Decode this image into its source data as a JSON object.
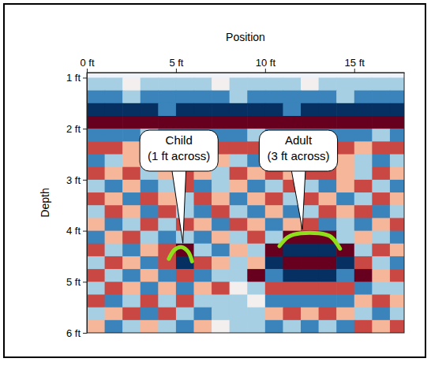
{
  "chart_data": {
    "type": "heatmap",
    "x_label": "Position",
    "y_label": "Depth",
    "xlim": [
      0,
      17.8
    ],
    "ylim": [
      0.9,
      6
    ],
    "xticks": [
      {
        "value": 0,
        "label": "0 ft"
      },
      {
        "value": 5,
        "label": "5 ft"
      },
      {
        "value": 10,
        "label": "10 ft"
      },
      {
        "value": 15,
        "label": "15 ft"
      }
    ],
    "yticks": [
      {
        "value": 1,
        "label": "1 ft"
      },
      {
        "value": 2,
        "label": "2 ft"
      },
      {
        "value": 3,
        "label": "3 ft"
      },
      {
        "value": 4,
        "label": "4 ft"
      },
      {
        "value": 5,
        "label": "5 ft"
      },
      {
        "value": 6,
        "label": "6 ft"
      }
    ],
    "x_edges": [
      0,
      1,
      2,
      3,
      4,
      5,
      6,
      7,
      8,
      9,
      10,
      11,
      12,
      13,
      14,
      15,
      16,
      17,
      18
    ],
    "y_edges": [
      1,
      1.25,
      1.5,
      1.75,
      2,
      2.25,
      2.5,
      2.75,
      3,
      3.25,
      3.5,
      3.75,
      4,
      4.25,
      4.5,
      4.75,
      5,
      5.25,
      5.5,
      5.75,
      6
    ],
    "cells": [
      [
        -1,
        -1,
        0,
        -1,
        -1,
        -1,
        -1,
        0,
        -1,
        -1,
        -1,
        -1,
        0,
        -1,
        -1,
        -1,
        -1,
        -1
      ],
      [
        -2,
        -2,
        -1,
        -2,
        -2,
        -2,
        -2,
        -2,
        -1,
        -2,
        -2,
        -2,
        -2,
        -2,
        -1,
        -2,
        -2,
        -2
      ],
      [
        -3,
        -3,
        -3,
        -3,
        -2,
        -3,
        -3,
        -3,
        -3,
        -3,
        -3,
        -2,
        -3,
        -3,
        -3,
        -3,
        -3,
        -3
      ],
      [
        3,
        3,
        3,
        3,
        3,
        3,
        3,
        3,
        3,
        3,
        3,
        3,
        3,
        3,
        3,
        3,
        3,
        3
      ],
      [
        -2,
        -2,
        -2,
        -1,
        -2,
        -2,
        -2,
        -2,
        -2,
        -1,
        -2,
        -2,
        -2,
        -2,
        -2,
        -2,
        -1,
        -2
      ],
      [
        2,
        2,
        1,
        2,
        2,
        2,
        1,
        2,
        2,
        2,
        2,
        1,
        2,
        2,
        2,
        1,
        2,
        2
      ],
      [
        -2,
        -1,
        1,
        -1,
        -2,
        -1,
        -1,
        1,
        -1,
        -2,
        -1,
        -1,
        -2,
        -1,
        1,
        -1,
        -2,
        -1
      ],
      [
        2,
        1,
        2,
        -1,
        1,
        2,
        1,
        -1,
        2,
        1,
        2,
        1,
        2,
        2,
        1,
        -1,
        2,
        1
      ],
      [
        -1,
        -2,
        1,
        -2,
        -1,
        2,
        -2,
        -1,
        1,
        -2,
        -1,
        2,
        -1,
        -2,
        1,
        2,
        -1,
        -2
      ],
      [
        2,
        1,
        -2,
        2,
        1,
        -1,
        2,
        1,
        -2,
        1,
        2,
        -1,
        2,
        1,
        -2,
        -1,
        2,
        1
      ],
      [
        -1,
        2,
        1,
        -2,
        2,
        -1,
        -2,
        2,
        -1,
        -2,
        1,
        -2,
        -1,
        2,
        1,
        2,
        -2,
        -1
      ],
      [
        1,
        -2,
        -1,
        2,
        -1,
        2,
        1,
        -2,
        2,
        1,
        -2,
        1,
        2,
        -2,
        -1,
        -2,
        1,
        2
      ],
      [
        -2,
        1,
        2,
        -1,
        -2,
        -1,
        -2,
        1,
        -1,
        2,
        -1,
        3,
        3,
        3,
        -1,
        1,
        -1,
        -2
      ],
      [
        2,
        -1,
        -2,
        1,
        2,
        3,
        -1,
        -2,
        1,
        -1,
        3,
        -3,
        -3,
        -3,
        3,
        -1,
        2,
        1
      ],
      [
        -1,
        2,
        1,
        -2,
        2,
        -3,
        2,
        1,
        -1,
        1,
        -3,
        3,
        3,
        3,
        -3,
        2,
        -1,
        -2
      ],
      [
        2,
        -1,
        -2,
        1,
        -2,
        2,
        -2,
        -1,
        -1,
        3,
        -2,
        -3,
        -3,
        -3,
        -2,
        3,
        1,
        2
      ],
      [
        -1,
        2,
        1,
        -2,
        1,
        -2,
        1,
        2,
        0,
        -1,
        2,
        2,
        2,
        2,
        2,
        -2,
        -1,
        -1
      ],
      [
        2,
        -2,
        -1,
        2,
        -1,
        2,
        -1,
        -1,
        -1,
        0,
        -2,
        -2,
        -2,
        -2,
        -2,
        1,
        2,
        1
      ],
      [
        -1,
        1,
        2,
        -2,
        2,
        -1,
        -2,
        -1,
        -1,
        -1,
        1,
        2,
        1,
        2,
        1,
        -1,
        -2,
        -1
      ],
      [
        1,
        -2,
        -1,
        1,
        -1,
        -2,
        1,
        0,
        -1,
        -1,
        -2,
        -1,
        -2,
        -1,
        -2,
        2,
        1,
        2
      ]
    ],
    "annotations": [
      {
        "text": [
          "Child",
          "(1 ft across)"
        ],
        "x": [
          4.6,
          4.9,
          5.3,
          5.7,
          5.9
        ],
        "y": [
          4.55,
          4.38,
          4.32,
          4.42,
          4.6
        ],
        "color": "#8fe01a"
      },
      {
        "text": [
          "Adult",
          "(3 ft across)"
        ],
        "x": [
          10.8,
          11.3,
          12,
          13,
          13.7,
          14.2
        ],
        "y": [
          4.3,
          4.12,
          4.05,
          4.05,
          4.12,
          4.35
        ],
        "color": "#8fe01a"
      }
    ]
  }
}
